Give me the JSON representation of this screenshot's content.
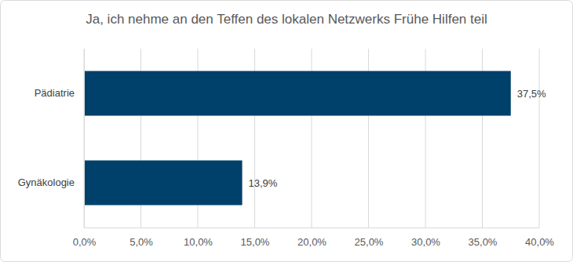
{
  "chart_data": {
    "type": "bar",
    "orientation": "horizontal",
    "title": "Ja, ich nehme an den Teffen des lokalen Netzwerks Frühe Hilfen teil",
    "categories": [
      "Pädiatrie",
      "Gynäkologie"
    ],
    "values": [
      37.5,
      13.9
    ],
    "value_labels": [
      "37,5%",
      "13,9%"
    ],
    "color": "#00416b",
    "xlim": [
      0,
      40
    ],
    "xticks": [
      {
        "value": 0,
        "label": "0,0%"
      },
      {
        "value": 5,
        "label": "5,0%"
      },
      {
        "value": 10,
        "label": "10,0%"
      },
      {
        "value": 15,
        "label": "15,0%"
      },
      {
        "value": 20,
        "label": "20,0%"
      },
      {
        "value": 25,
        "label": "25,0%"
      },
      {
        "value": 30,
        "label": "30,0%"
      },
      {
        "value": 35,
        "label": "35,0%"
      },
      {
        "value": 40,
        "label": "40,0%"
      }
    ],
    "grid": true,
    "data_labels": true
  }
}
